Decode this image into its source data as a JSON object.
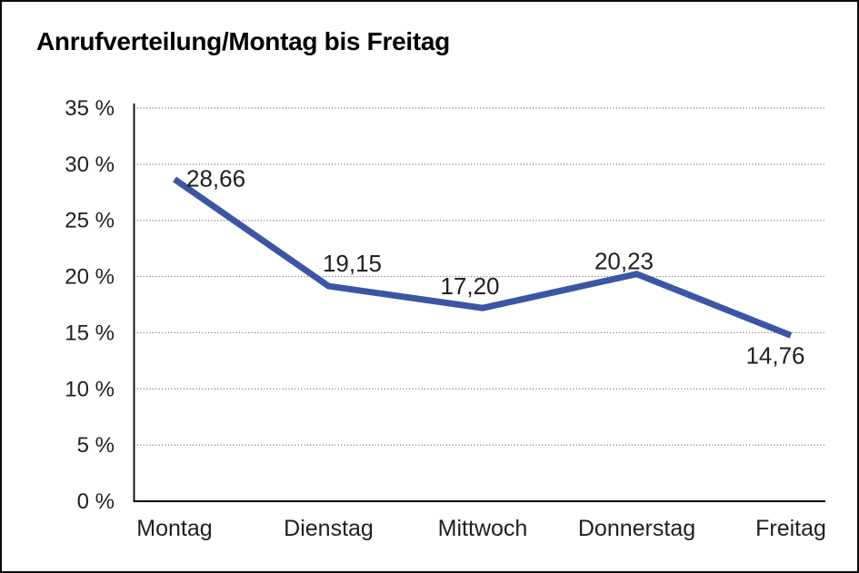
{
  "title": "Anrufverteilung/Montag bis Freitag",
  "colors": {
    "line": "#3A56A4",
    "text": "#1f1f1f",
    "grid": "#666666",
    "axis": "#000000",
    "frame_border": "#0a0a0a",
    "background": "#ffffff"
  },
  "chart_data": {
    "type": "line",
    "title": "Anrufverteilung/Montag bis Freitag",
    "categories": [
      "Montag",
      "Dienstag",
      "Mittwoch",
      "Donnerstag",
      "Freitag"
    ],
    "series": [
      {
        "name": "Anrufverteilung",
        "values": [
          28.66,
          19.15,
          17.2,
          20.23,
          14.76
        ]
      }
    ],
    "value_labels": [
      "28,66",
      "19,15",
      "17,20",
      "20,23",
      "14,76"
    ],
    "xlabel": "",
    "ylabel": "",
    "ylim": [
      0,
      35
    ],
    "y_tick_step": 5,
    "y_tick_labels": [
      "0 %",
      "5 %",
      "10 %",
      "15 %",
      "20 %",
      "25 %",
      "30 %",
      "35 %"
    ],
    "grid": "horizontal-dotted",
    "legend_position": "none"
  }
}
